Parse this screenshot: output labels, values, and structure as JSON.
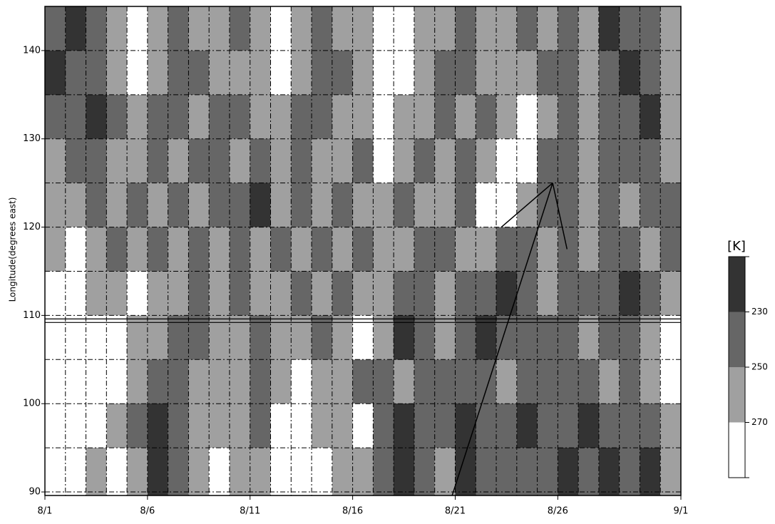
{
  "chart_data": {
    "type": "hovmoller",
    "ylabel": "Longitude(degrees east)",
    "xlim": [
      1,
      32
    ],
    "ylim": [
      89.6,
      145
    ],
    "xticks": [
      {
        "value": 1,
        "label": "8/1"
      },
      {
        "value": 6,
        "label": "8/6"
      },
      {
        "value": 11,
        "label": "8/11"
      },
      {
        "value": 16,
        "label": "8/16"
      },
      {
        "value": 21,
        "label": "8/21"
      },
      {
        "value": 26,
        "label": "8/26"
      },
      {
        "value": 32,
        "label": "9/1"
      }
    ],
    "xminor": [
      2,
      3,
      4,
      5,
      7,
      8,
      9,
      10,
      12,
      13,
      14,
      15,
      17,
      18,
      19,
      20,
      22,
      23,
      24,
      25,
      27,
      28,
      29,
      30,
      31
    ],
    "yticks": [
      90,
      100,
      110,
      120,
      130,
      140
    ],
    "yminor": [
      95,
      105,
      115,
      125,
      135
    ],
    "grid": true,
    "colorbar": {
      "label": "[K]",
      "levels": [
        230,
        250,
        270
      ],
      "colors": [
        "#333333",
        "#666666",
        "#a0a0a0",
        "#ffffff"
      ]
    },
    "field": {
      "x_edges": [
        1,
        2,
        3,
        4,
        5,
        6,
        7,
        8,
        9,
        10,
        11,
        12,
        13,
        14,
        15,
        16,
        17,
        18,
        19,
        20,
        21,
        22,
        23,
        24,
        25,
        26,
        27,
        28,
        29,
        30,
        31,
        32
      ],
      "y_edges": [
        145,
        140,
        135,
        130,
        125,
        120,
        115,
        110,
        105,
        100,
        95,
        89.6
      ],
      "values": [
        [
          240,
          220,
          240,
          260,
          280,
          260,
          240,
          260,
          260,
          240,
          260,
          280,
          260,
          240,
          260,
          260,
          280,
          280,
          260,
          260,
          240,
          260,
          260,
          240,
          260,
          240,
          260,
          220,
          240,
          240,
          260
        ],
        [
          220,
          240,
          240,
          260,
          280,
          260,
          240,
          240,
          260,
          260,
          260,
          280,
          260,
          240,
          240,
          260,
          280,
          280,
          260,
          240,
          240,
          260,
          260,
          260,
          240,
          240,
          260,
          240,
          220,
          240,
          260
        ],
        [
          240,
          240,
          220,
          240,
          260,
          240,
          240,
          260,
          240,
          240,
          260,
          260,
          240,
          240,
          260,
          260,
          280,
          260,
          260,
          240,
          260,
          240,
          260,
          280,
          260,
          240,
          260,
          240,
          240,
          220,
          260
        ],
        [
          260,
          240,
          240,
          260,
          260,
          240,
          260,
          240,
          240,
          260,
          240,
          260,
          240,
          260,
          260,
          240,
          280,
          260,
          240,
          260,
          240,
          260,
          280,
          280,
          240,
          240,
          260,
          240,
          240,
          240,
          260
        ],
        [
          260,
          260,
          240,
          260,
          240,
          260,
          240,
          260,
          240,
          240,
          220,
          260,
          240,
          260,
          240,
          260,
          260,
          240,
          260,
          260,
          240,
          280,
          280,
          260,
          240,
          240,
          260,
          240,
          260,
          240,
          240
        ],
        [
          260,
          280,
          260,
          240,
          260,
          240,
          260,
          240,
          260,
          240,
          260,
          240,
          260,
          240,
          260,
          240,
          260,
          260,
          240,
          240,
          260,
          260,
          240,
          240,
          260,
          240,
          260,
          240,
          240,
          260,
          240
        ],
        [
          280,
          280,
          260,
          260,
          280,
          260,
          260,
          240,
          260,
          240,
          260,
          260,
          240,
          260,
          240,
          260,
          260,
          240,
          240,
          260,
          240,
          240,
          220,
          240,
          260,
          240,
          240,
          240,
          220,
          240,
          260
        ],
        [
          280,
          280,
          280,
          280,
          260,
          260,
          240,
          240,
          260,
          260,
          240,
          260,
          260,
          240,
          260,
          280,
          260,
          220,
          240,
          260,
          240,
          220,
          240,
          240,
          240,
          240,
          260,
          240,
          240,
          260,
          280
        ],
        [
          280,
          280,
          280,
          280,
          260,
          240,
          240,
          260,
          260,
          260,
          240,
          260,
          280,
          260,
          260,
          240,
          240,
          260,
          240,
          240,
          240,
          240,
          260,
          240,
          240,
          240,
          240,
          260,
          240,
          260,
          280
        ],
        [
          280,
          280,
          280,
          260,
          240,
          220,
          240,
          260,
          260,
          260,
          240,
          280,
          280,
          260,
          260,
          280,
          240,
          220,
          240,
          240,
          220,
          240,
          240,
          220,
          240,
          240,
          220,
          240,
          240,
          240,
          260
        ],
        [
          280,
          280,
          260,
          280,
          260,
          220,
          240,
          260,
          280,
          260,
          260,
          280,
          280,
          280,
          260,
          260,
          240,
          220,
          240,
          260,
          220,
          240,
          240,
          240,
          240,
          220,
          240,
          220,
          240,
          220,
          260
        ]
      ]
    },
    "hlines": [
      109.2,
      109.6
    ],
    "annotations": [
      {
        "x": [
          20.85,
          25.75
        ],
        "y": [
          89.6,
          125
        ]
      },
      {
        "x": [
          25.75,
          23.25
        ],
        "y": [
          125,
          120
        ]
      },
      {
        "x": [
          25.75,
          26.45
        ],
        "y": [
          125,
          117.5
        ]
      }
    ]
  }
}
